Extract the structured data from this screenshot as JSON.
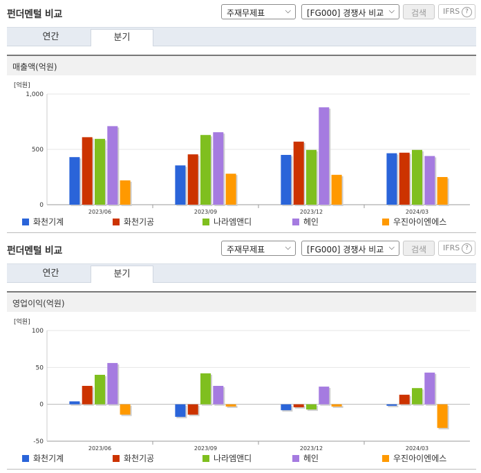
{
  "panels": [
    {
      "title": "펀더멘털 비교",
      "select1": "주재무제표",
      "select2": "[FG000] 경쟁사 비교",
      "search_label": "검색",
      "ifrs_label": "IFRS",
      "help_glyph": "?",
      "tabs": [
        {
          "label": "연간"
        },
        {
          "label": "분기"
        }
      ],
      "active_tab": "분기",
      "section_title": "매출액(억원)"
    },
    {
      "title": "펀더멘털 비교",
      "select1": "주재무제표",
      "select2": "[FG000] 경쟁사 비교",
      "search_label": "검색",
      "ifrs_label": "IFRS",
      "help_glyph": "?",
      "tabs": [
        {
          "label": "연간"
        },
        {
          "label": "분기"
        }
      ],
      "active_tab": "분기",
      "section_title": "영업이익(억원)"
    }
  ],
  "chart_data": [
    {
      "type": "bar",
      "unit_label": "[억원]",
      "categories": [
        "2023/06",
        "2023/09",
        "2023/12",
        "2024/03"
      ],
      "ylim": [
        0,
        1000
      ],
      "yticks": [
        0,
        500,
        1000
      ],
      "ytick_labels": [
        "0",
        "500",
        "1,000"
      ],
      "grid": true,
      "legend_position": "bottom",
      "series": [
        {
          "name": "화천기계",
          "color": "#2a64d9",
          "values": [
            430,
            355,
            450,
            465
          ]
        },
        {
          "name": "화천기공",
          "color": "#cc3300",
          "values": [
            610,
            455,
            570,
            470
          ]
        },
        {
          "name": "나라엠앤디",
          "color": "#7fbf1f",
          "values": [
            595,
            630,
            495,
            495
          ]
        },
        {
          "name": "헤인",
          "color": "#a57be0",
          "values": [
            710,
            655,
            880,
            440
          ]
        },
        {
          "name": "우진아이엔에스",
          "color": "#ff9900",
          "values": [
            220,
            280,
            270,
            250
          ]
        }
      ]
    },
    {
      "type": "bar",
      "unit_label": "[억원]",
      "categories": [
        "2023/06",
        "2023/09",
        "2023/12",
        "2024/03"
      ],
      "ylim": [
        -50,
        100
      ],
      "yticks": [
        -50,
        0,
        50,
        100
      ],
      "ytick_labels": [
        "-50",
        "0",
        "50",
        "100"
      ],
      "grid": true,
      "legend_position": "bottom",
      "series": [
        {
          "name": "화천기계",
          "color": "#2a64d9",
          "values": [
            4,
            -17,
            -8,
            -2
          ]
        },
        {
          "name": "화천기공",
          "color": "#cc3300",
          "values": [
            25,
            -14,
            -4,
            13
          ]
        },
        {
          "name": "나라엠앤디",
          "color": "#7fbf1f",
          "values": [
            40,
            42,
            -7,
            22
          ]
        },
        {
          "name": "헤인",
          "color": "#a57be0",
          "values": [
            56,
            25,
            24,
            43
          ]
        },
        {
          "name": "우진아이엔에스",
          "color": "#ff9900",
          "values": [
            -14,
            -3,
            -3,
            -32
          ]
        }
      ]
    }
  ]
}
